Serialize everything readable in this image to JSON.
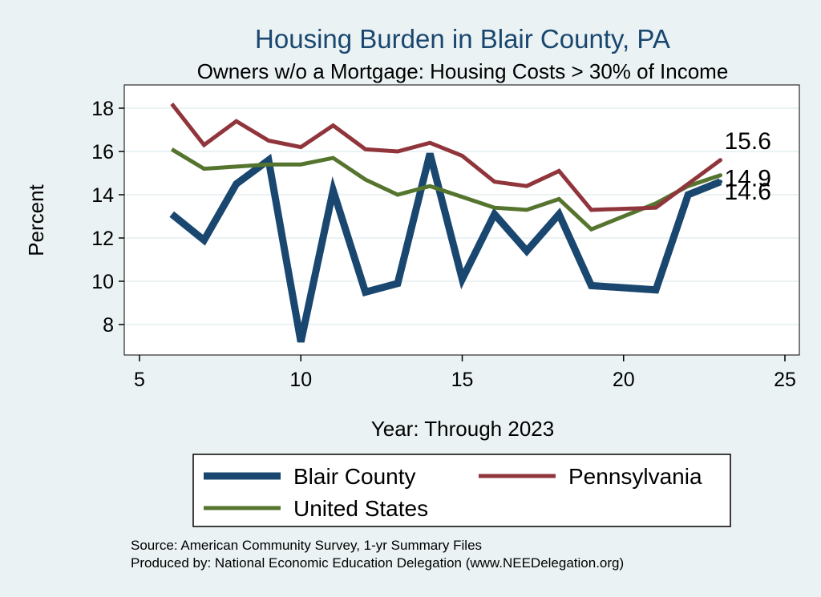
{
  "chart_data": {
    "type": "line",
    "title": "Housing Burden in Blair County, PA",
    "subtitle": "Owners w/o a Mortgage: Housing Costs > 30% of Income",
    "xlabel": "Year: Through 2023",
    "ylabel": "Percent",
    "xlim": [
      5,
      25
    ],
    "ylim": [
      6.8,
      19
    ],
    "xticks": [
      5,
      10,
      15,
      20,
      25
    ],
    "yticks": [
      8,
      10,
      12,
      14,
      16,
      18
    ],
    "grid": true,
    "legend_position": "bottom",
    "series": [
      {
        "name": "Blair County",
        "color": "#1a476f",
        "x": [
          6,
          7,
          8,
          9,
          10,
          11,
          12,
          13,
          14,
          15,
          16,
          17,
          18,
          19,
          21,
          22,
          23
        ],
        "y": [
          13.1,
          11.9,
          14.5,
          15.6,
          7.2,
          14.2,
          9.5,
          9.9,
          15.9,
          10.1,
          13.1,
          11.4,
          13.1,
          9.8,
          9.6,
          14.0,
          14.6
        ],
        "end_label": "14.6"
      },
      {
        "name": "Pennsylvania",
        "color": "#90353b",
        "x": [
          6,
          7,
          8,
          9,
          10,
          11,
          12,
          13,
          14,
          15,
          16,
          17,
          18,
          19,
          21,
          22,
          23
        ],
        "y": [
          18.2,
          16.3,
          17.4,
          16.5,
          16.2,
          17.2,
          16.1,
          16.0,
          16.4,
          15.8,
          14.6,
          14.4,
          15.1,
          13.3,
          13.4,
          14.5,
          15.6
        ],
        "end_label": "15.6"
      },
      {
        "name": "United States",
        "color": "#55752f",
        "x": [
          6,
          7,
          8,
          9,
          10,
          11,
          12,
          13,
          14,
          15,
          16,
          17,
          18,
          19,
          21,
          22,
          23
        ],
        "y": [
          16.1,
          15.2,
          15.3,
          15.4,
          15.4,
          15.7,
          14.7,
          14.0,
          14.4,
          13.9,
          13.4,
          13.3,
          13.8,
          12.4,
          13.6,
          14.4,
          14.9
        ],
        "end_label": "14.9"
      }
    ],
    "notes": [
      "Source: American Community Survey, 1-yr Summary Files",
      "Produced by: National Economic Education Delegation (www.NEEDelegation.org)"
    ]
  }
}
